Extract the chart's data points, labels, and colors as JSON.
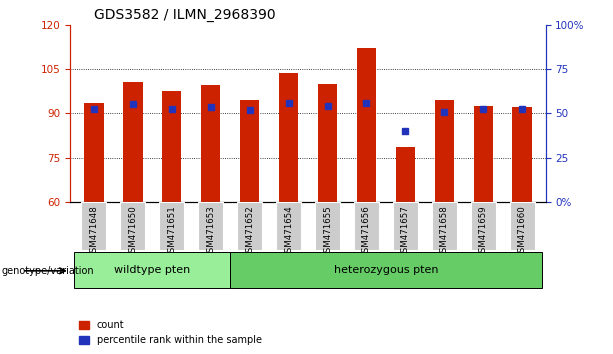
{
  "title": "GDS3582 / ILMN_2968390",
  "samples": [
    "GSM471648",
    "GSM471650",
    "GSM471651",
    "GSM471653",
    "GSM471652",
    "GSM471654",
    "GSM471655",
    "GSM471656",
    "GSM471657",
    "GSM471658",
    "GSM471659",
    "GSM471660"
  ],
  "red_values": [
    93.5,
    100.5,
    97.5,
    99.5,
    94.5,
    103.5,
    100.0,
    112.0,
    78.5,
    94.5,
    92.5,
    92.0
  ],
  "blue_values": [
    91.5,
    93.0,
    91.5,
    92.0,
    91.0,
    93.5,
    92.5,
    93.5,
    84.0,
    90.5,
    91.5,
    91.5
  ],
  "ymin": 60,
  "ymax": 120,
  "yticks_left": [
    60,
    75,
    90,
    105,
    120
  ],
  "yticks_right": [
    0,
    25,
    50,
    75,
    100
  ],
  "ytick_right_labels": [
    "0%",
    "25",
    "50",
    "75",
    "100%"
  ],
  "wildtype_count": 4,
  "wildtype_label": "wildtype pten",
  "hetero_label": "heterozygous pten",
  "genotype_label": "genotype/variation",
  "legend_count": "count",
  "legend_percentile": "percentile rank within the sample",
  "bar_color_red": "#CC2200",
  "bar_color_blue": "#2233BB",
  "bar_width": 0.5,
  "wildtype_color": "#99EE99",
  "hetero_color": "#66CC66",
  "background_xtick": "#CCCCCC",
  "title_fontsize": 10,
  "tick_fontsize": 7.5,
  "label_fontsize": 7
}
